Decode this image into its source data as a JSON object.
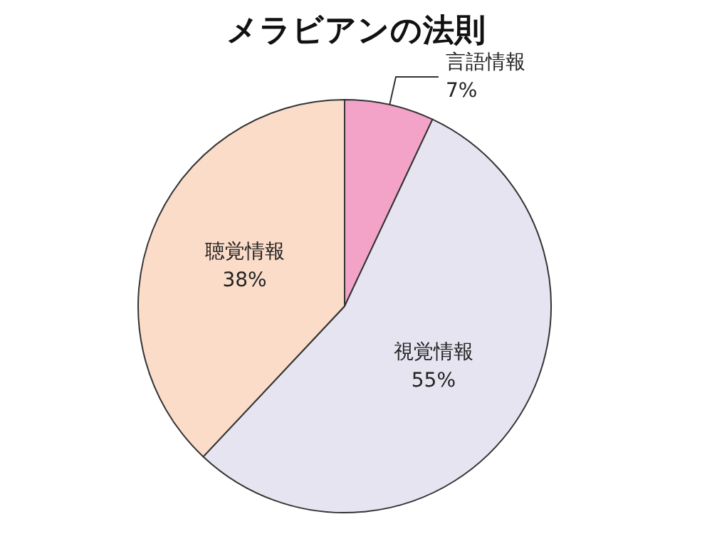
{
  "chart_data": {
    "type": "pie",
    "title": "メラビアンの法則",
    "categories": [
      "言語情報",
      "視覚情報",
      "聴覚情報"
    ],
    "values": [
      7,
      55,
      38
    ],
    "colors": [
      "#f2a3c7",
      "#e6e4f0",
      "#fbdcc9"
    ],
    "value_labels": [
      "7%",
      "55%",
      "38%"
    ],
    "legend": false
  }
}
